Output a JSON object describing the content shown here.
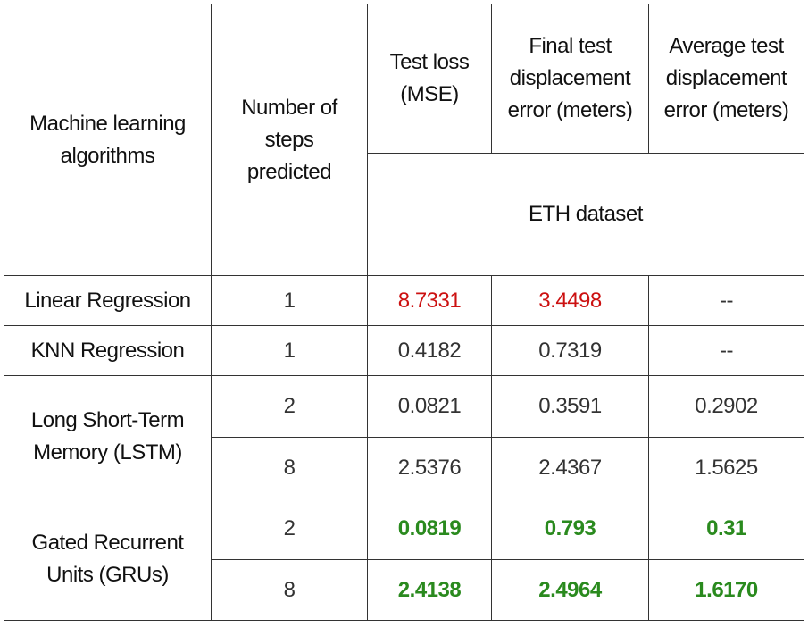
{
  "colors": {
    "worst": "#cc1111",
    "best": "#2a8a1e"
  },
  "header": {
    "algorithms": "Machine learning algorithms",
    "steps": "Number of steps predicted",
    "test_loss": "Test loss (MSE)",
    "final_error": "Final  test displacement error (meters)",
    "average_error": "Average test displacement error (meters)",
    "dataset": "ETH dataset"
  },
  "rows": [
    {
      "algorithm": "Linear Regression",
      "steps": "1",
      "test_loss": "8.7331",
      "final_error": "3.4498",
      "average_error": "--"
    },
    {
      "algorithm": "KNN Regression",
      "steps": "1",
      "test_loss": "0.4182",
      "final_error": "0.7319",
      "average_error": "--"
    },
    {
      "algorithm": "Long Short-Term Memory (LSTM)",
      "steps": "2",
      "test_loss": "0.0821",
      "final_error": "0.3591",
      "average_error": "0.2902"
    },
    {
      "algorithm": "Long Short-Term Memory (LSTM)",
      "steps": "8",
      "test_loss": "2.5376",
      "final_error": "2.4367",
      "average_error": "1.5625"
    },
    {
      "algorithm": "Gated Recurrent Units (GRUs)",
      "steps": "2",
      "test_loss": "0.0819",
      "final_error": "0.793",
      "average_error": "0.31"
    },
    {
      "algorithm": "Gated Recurrent Units (GRUs)",
      "steps": "8",
      "test_loss": "2.4138",
      "final_error": "2.4964",
      "average_error": "1.6170"
    }
  ]
}
